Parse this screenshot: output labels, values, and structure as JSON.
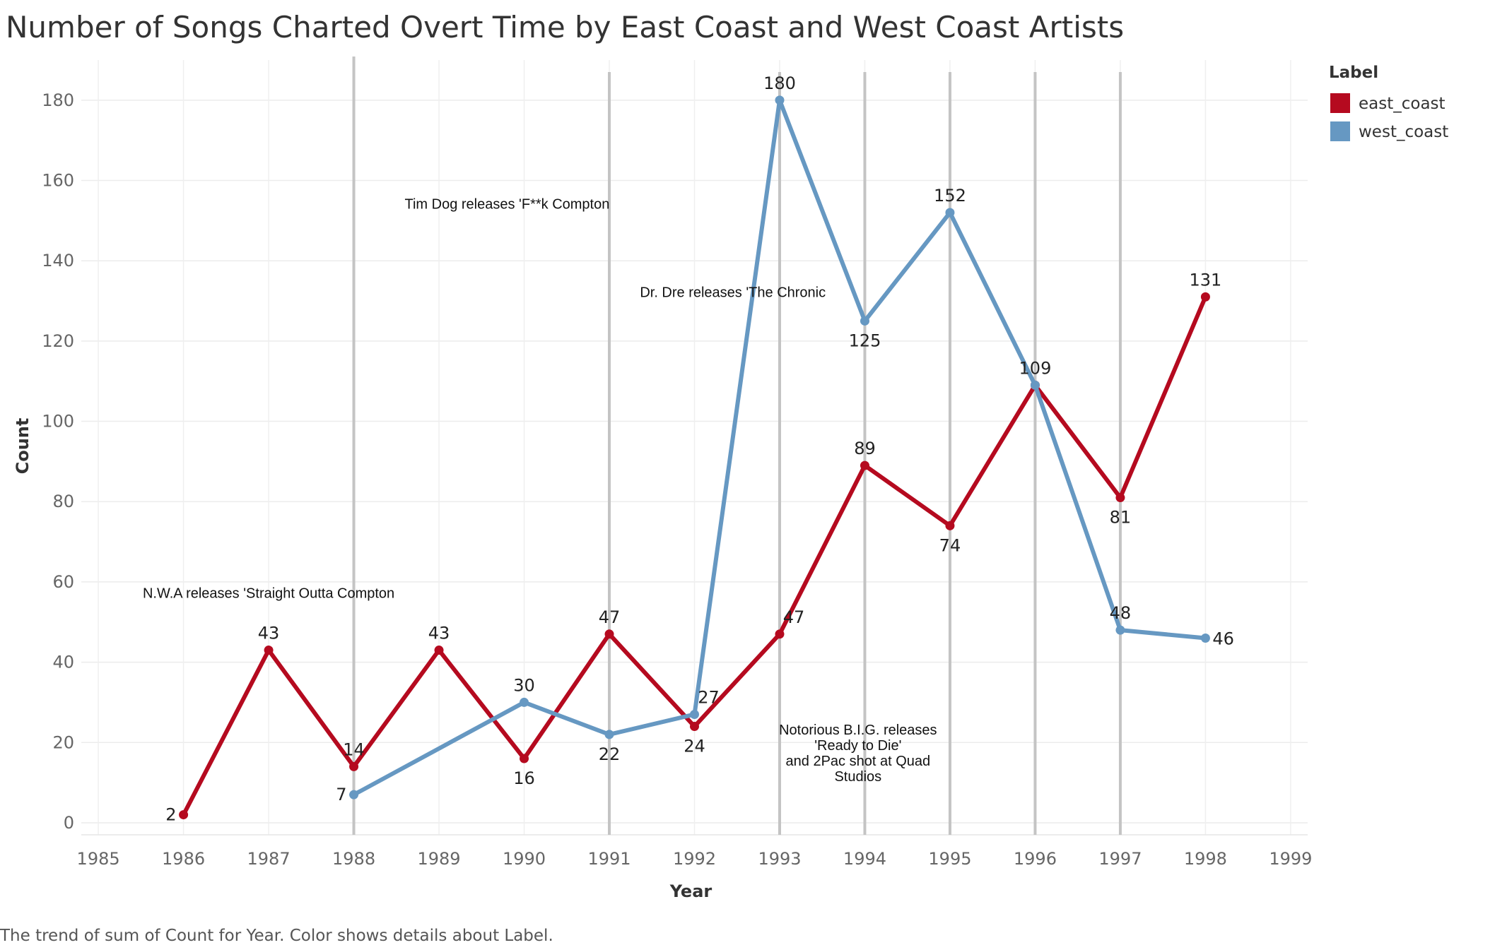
{
  "chart_data": {
    "type": "line",
    "title": "Number of Songs Charted Overt Time by East Coast and West Coast Artists",
    "xlabel": "Year",
    "ylabel": "Count",
    "xlim": [
      1984.8,
      1999.2
    ],
    "ylim": [
      -3,
      190
    ],
    "x_ticks": [
      1985,
      1986,
      1987,
      1988,
      1989,
      1990,
      1991,
      1992,
      1993,
      1994,
      1995,
      1996,
      1997,
      1998,
      1999
    ],
    "y_ticks": [
      0,
      20,
      40,
      60,
      80,
      100,
      120,
      140,
      160,
      180
    ],
    "grid": true,
    "legend": {
      "title": "Label",
      "position": "top-right"
    },
    "event_lines": [
      1988,
      1991,
      1993,
      1994,
      1995,
      1996,
      1997
    ],
    "series": [
      {
        "name": "east_coast",
        "color": "#B50A1F",
        "x": [
          1986,
          1987,
          1988,
          1989,
          1990,
          1991,
          1992,
          1993,
          1994,
          1995,
          1996,
          1997,
          1998
        ],
        "values": [
          2,
          43,
          14,
          43,
          16,
          47,
          24,
          47,
          89,
          74,
          109,
          81,
          131
        ]
      },
      {
        "name": "west_coast",
        "color": "#6698C2",
        "x": [
          1988,
          1990,
          1991,
          1992,
          1993,
          1994,
          1995,
          1996,
          1997,
          1998
        ],
        "values": [
          7,
          30,
          22,
          27,
          180,
          125,
          152,
          109,
          48,
          46
        ]
      }
    ],
    "annotations": [
      {
        "x": 1987,
        "y": 56,
        "lines": [
          "N.W.A releases 'Straight Outta Compton"
        ]
      },
      {
        "x": 1989.8,
        "y": 153,
        "lines": [
          "Tim Dog releases 'F**k Compton"
        ]
      },
      {
        "x": 1992.45,
        "y": 131,
        "lines": [
          "Dr. Dre releases 'The Chronic"
        ]
      },
      {
        "x": 1993.92,
        "y": 22,
        "lines": [
          "Notorious B.I.G. releases",
          "'Ready to Die'",
          "and 2Pac shot at Quad",
          "Studios"
        ]
      }
    ]
  },
  "caption": "The trend of sum of Count for Year.  Color shows details about Label."
}
